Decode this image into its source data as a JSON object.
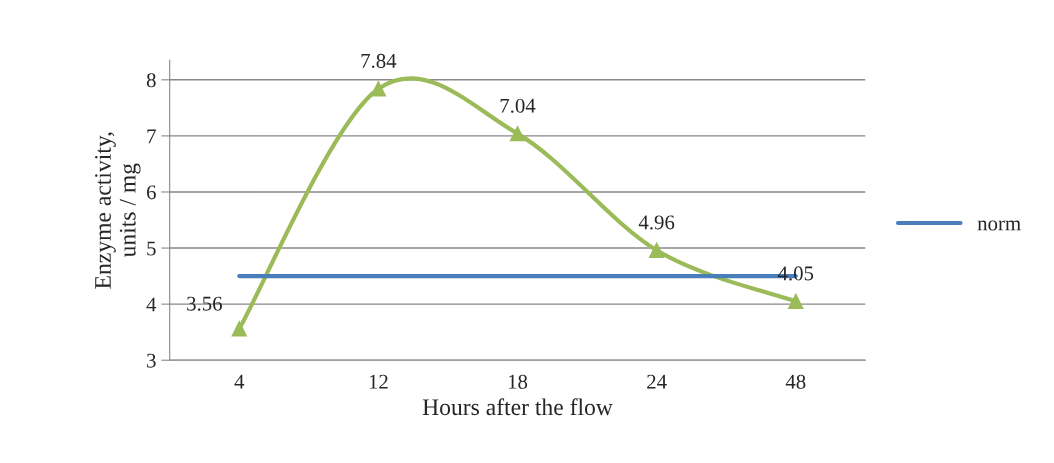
{
  "chart_data": {
    "type": "line",
    "xlabel": "Hours after the flow",
    "ylabel": "Enzyme activity,\nunits / mg",
    "categories": [
      "4",
      "12",
      "18",
      "24",
      "48"
    ],
    "series": [
      {
        "color": "#9bbb59",
        "values": [
          3.56,
          7.84,
          7.04,
          4.96,
          4.05
        ],
        "marker": "triangle",
        "value_labels": [
          "3.56",
          "7.84",
          "7.04",
          "4.96",
          "4.05"
        ]
      },
      {
        "name": "norm",
        "color": "#4a7ebb",
        "values": [
          4.5,
          4.5,
          4.5,
          4.5,
          4.5
        ],
        "marker": "none"
      }
    ],
    "ylim": [
      3,
      8.35
    ],
    "yticks": [
      3,
      4,
      5,
      6,
      7,
      8
    ],
    "grid": "y",
    "legend": "right"
  }
}
